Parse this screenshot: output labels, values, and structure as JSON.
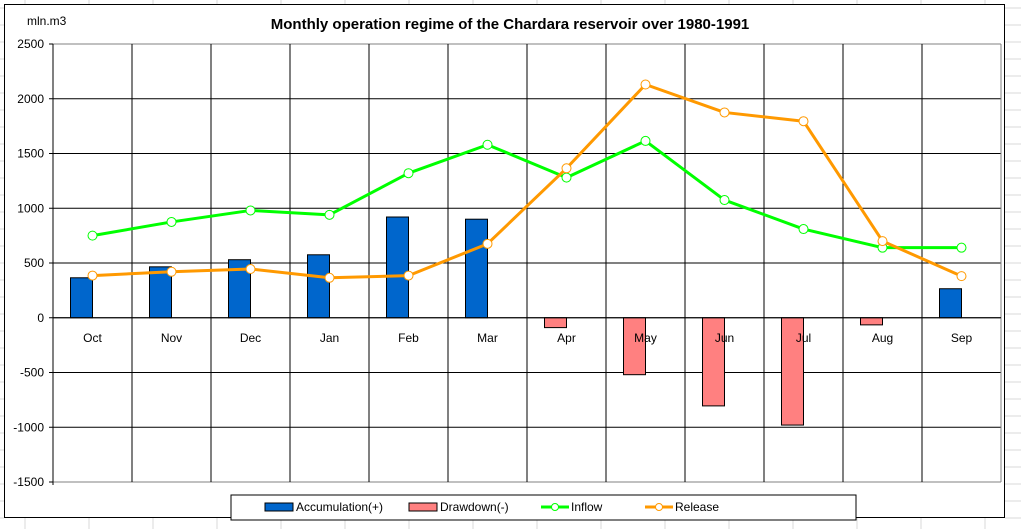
{
  "chart_data": {
    "type": "bar",
    "title": "Monthly operation regime of the Chardara reservoir over 1980-1991",
    "ylabel": "mln.m3",
    "xlabel": "",
    "ylim": [
      -1500,
      2500
    ],
    "ytick_step": 500,
    "yticks": [
      2500,
      2000,
      1500,
      1000,
      500,
      0,
      -500,
      -1000,
      -1500
    ],
    "grid": true,
    "legend_position": "bottom",
    "categories": [
      "Oct",
      "Nov",
      "Dec",
      "Jan",
      "Feb",
      "Mar",
      "Apr",
      "May",
      "Jun",
      "Jul",
      "Aug",
      "Sep"
    ],
    "series": [
      {
        "name": "Accumulation(+)",
        "kind": "bar",
        "color": "#0066CC",
        "values": [
          365,
          465,
          530,
          575,
          920,
          900,
          null,
          null,
          null,
          null,
          null,
          265
        ]
      },
      {
        "name": "Drawdown(-)",
        "kind": "bar",
        "color": "#FF8080",
        "values": [
          null,
          null,
          null,
          null,
          null,
          null,
          -90,
          -520,
          -805,
          -980,
          -65,
          null
        ]
      },
      {
        "name": "Inflow",
        "kind": "line",
        "color": "#00FF00",
        "values": [
          750,
          875,
          980,
          940,
          1320,
          1580,
          1280,
          1615,
          1075,
          810,
          640,
          640
        ]
      },
      {
        "name": "Release",
        "kind": "line",
        "color": "#FF9900",
        "values": [
          385,
          420,
          445,
          365,
          385,
          675,
          1365,
          2130,
          1875,
          1795,
          700,
          380
        ]
      }
    ]
  }
}
